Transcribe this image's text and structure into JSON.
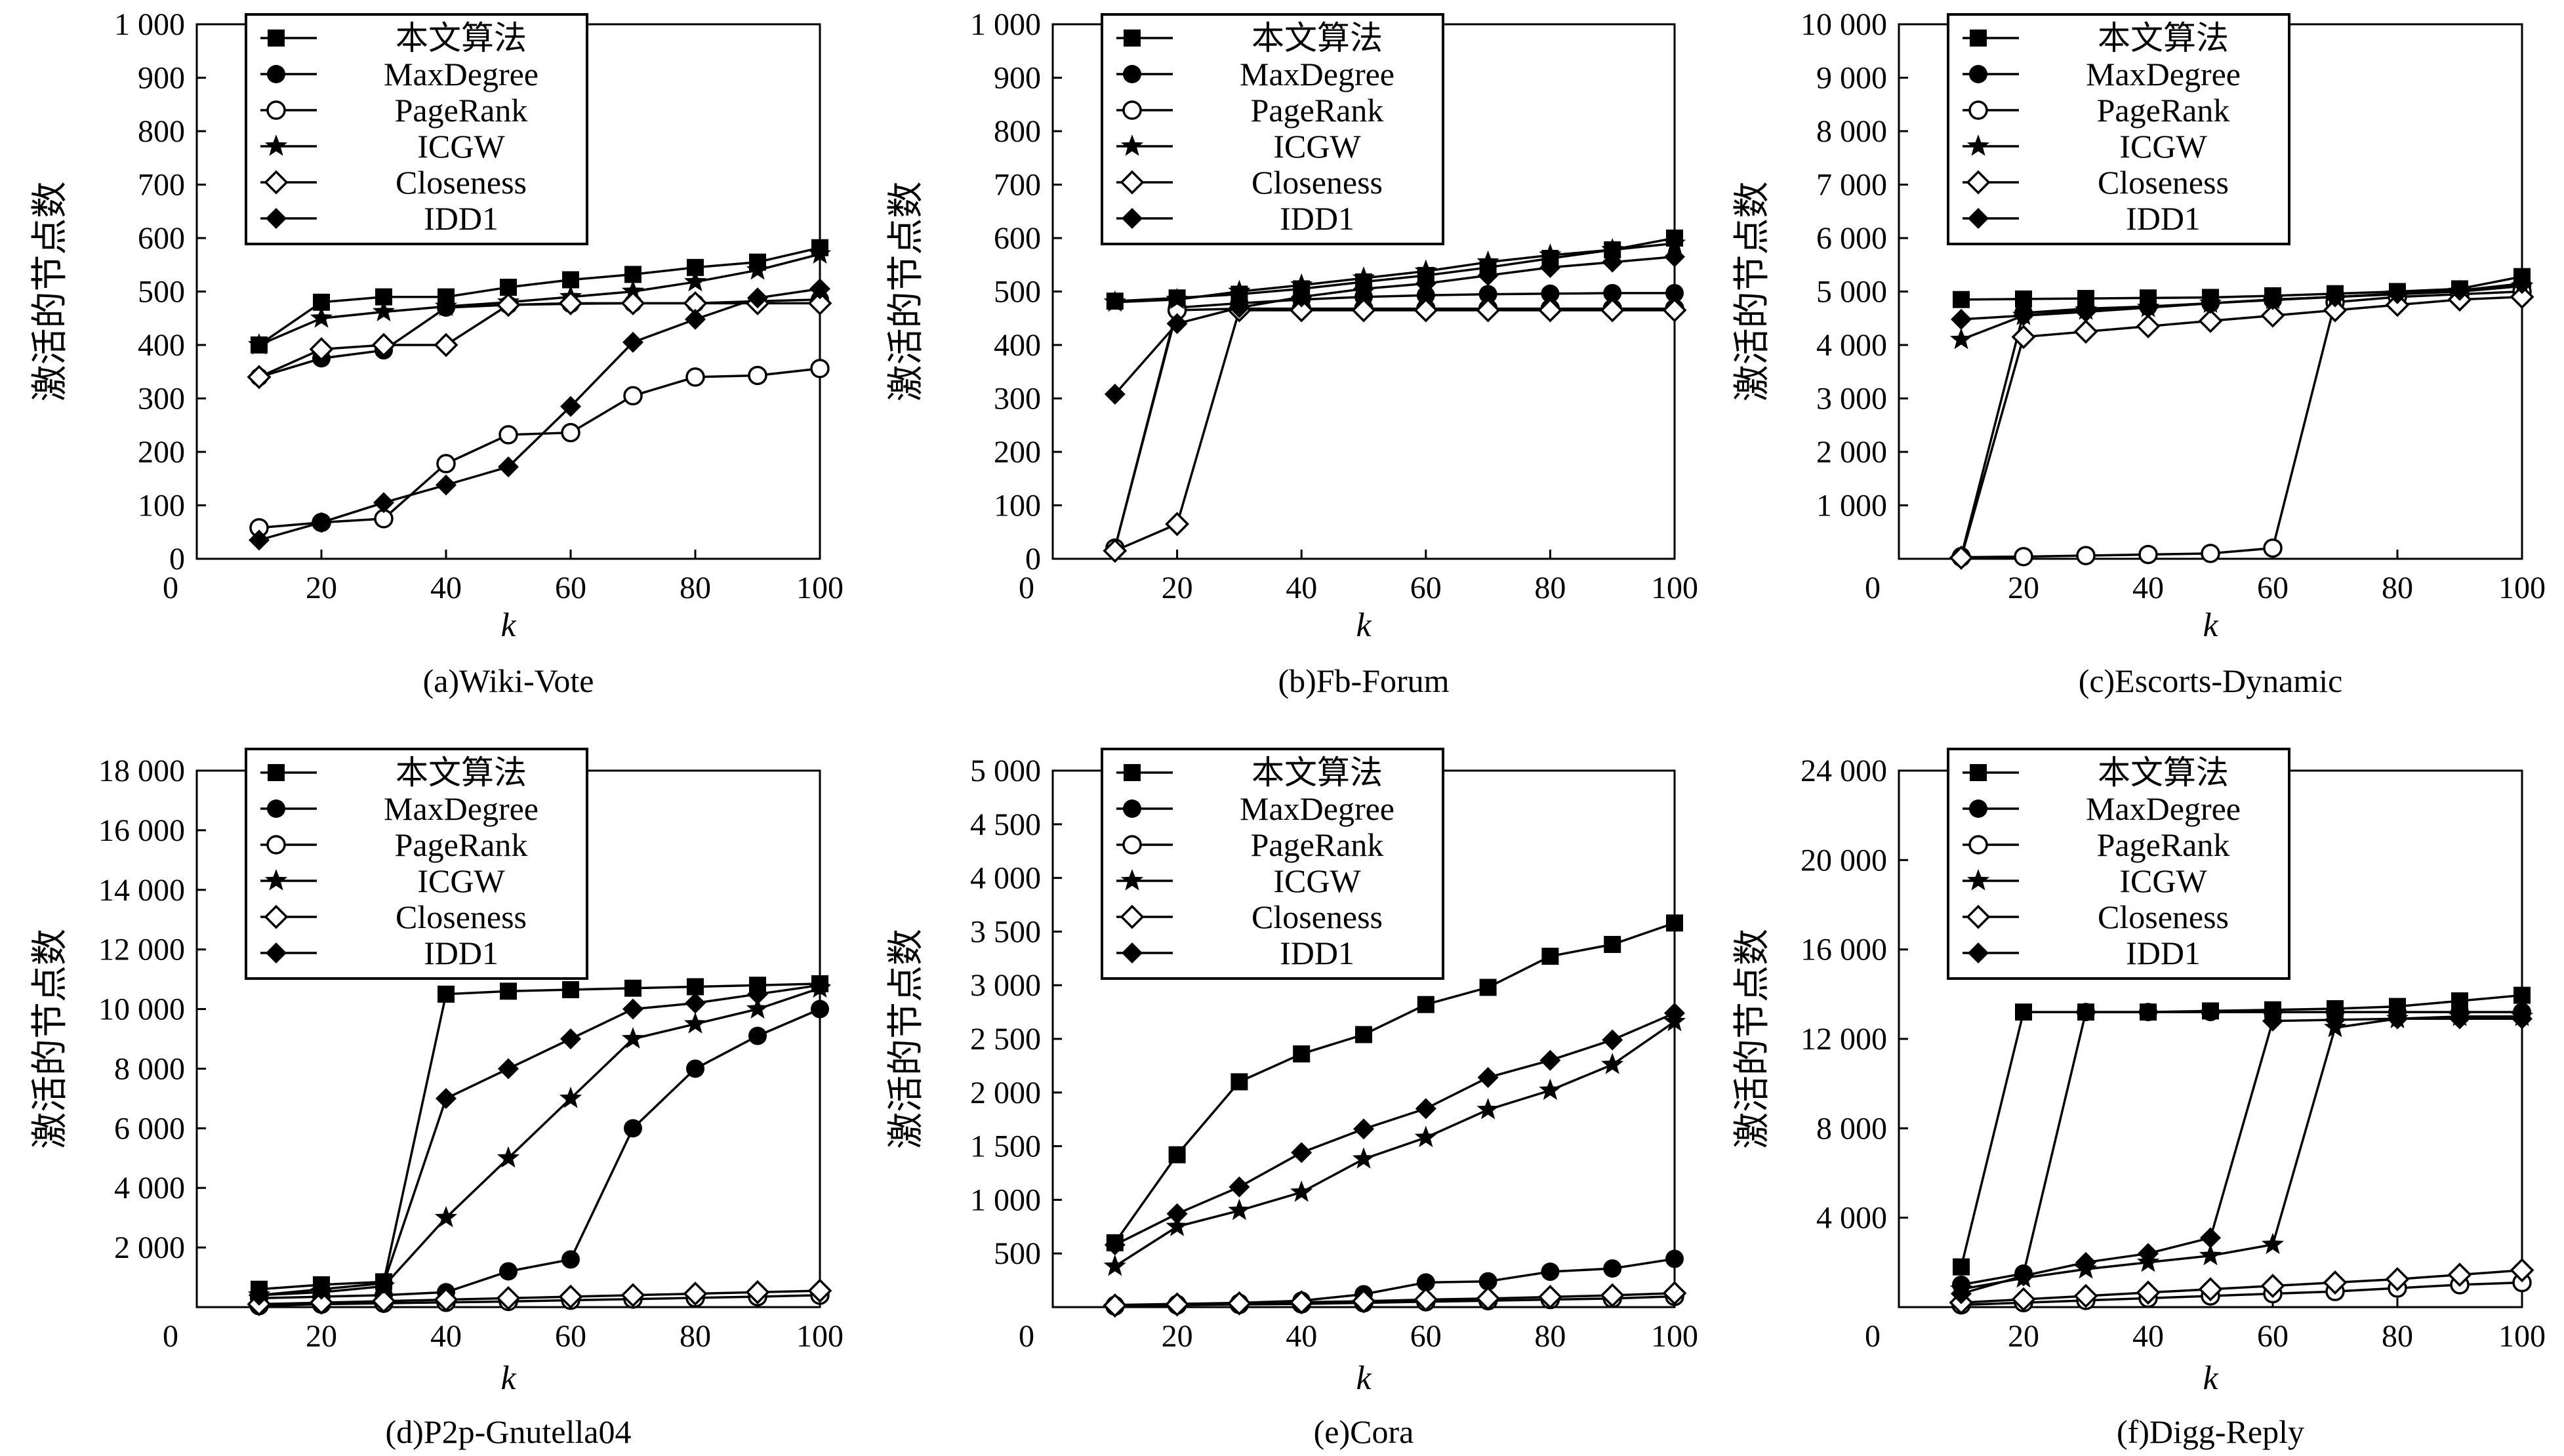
{
  "legend": [
    "本文算法",
    "MaxDegree",
    "PageRank",
    "ICGW",
    "Closeness",
    "IDD1"
  ],
  "series_markers": {
    "本文算法": "filled-square",
    "MaxDegree": "filled-circle",
    "PageRank": "open-circle",
    "ICGW": "filled-star",
    "Closeness": "open-diamond",
    "IDD1": "filled-diamond"
  },
  "chart_data": [
    {
      "type": "line",
      "caption": "(a)Wiki-Vote",
      "xlabel": "k",
      "ylabel": "激活的节点数",
      "xlim": [
        0,
        100
      ],
      "ylim": [
        0,
        1000
      ],
      "xticks": [
        0,
        20,
        40,
        60,
        80,
        100
      ],
      "xtick_labels": [
        "0",
        "20",
        "40",
        "60",
        "80",
        "100"
      ],
      "yticks": [
        0,
        100,
        200,
        300,
        400,
        500,
        600,
        700,
        800,
        900,
        1000
      ],
      "ytick_labels": [
        "0",
        "100",
        "200",
        "300",
        "400",
        "500",
        "600",
        "700",
        "800",
        "900",
        "1 000"
      ],
      "x": [
        10,
        20,
        30,
        40,
        50,
        60,
        70,
        80,
        90,
        100
      ],
      "series": [
        {
          "name": "本文算法",
          "values": [
            400,
            480,
            490,
            490,
            508,
            522,
            532,
            545,
            555,
            582
          ]
        },
        {
          "name": "MaxDegree",
          "values": [
            340,
            375,
            390,
            470,
            475,
            477,
            478,
            478,
            482,
            485
          ]
        },
        {
          "name": "PageRank",
          "values": [
            58,
            68,
            75,
            178,
            232,
            236,
            305,
            340,
            343,
            356
          ]
        },
        {
          "name": "ICGW",
          "values": [
            400,
            450,
            462,
            472,
            480,
            490,
            500,
            518,
            540,
            570
          ]
        },
        {
          "name": "Closeness",
          "values": [
            340,
            392,
            400,
            400,
            475,
            478,
            478,
            478,
            478,
            478
          ]
        },
        {
          "name": "IDD1",
          "values": [
            35,
            68,
            105,
            138,
            172,
            285,
            405,
            448,
            488,
            505
          ]
        }
      ]
    },
    {
      "type": "line",
      "caption": "(b)Fb-Forum",
      "xlabel": "k",
      "ylabel": "激活的节点数",
      "xlim": [
        0,
        100
      ],
      "ylim": [
        0,
        1000
      ],
      "xticks": [
        0,
        20,
        40,
        60,
        80,
        100
      ],
      "xtick_labels": [
        "0",
        "20",
        "40",
        "60",
        "80",
        "100"
      ],
      "yticks": [
        0,
        100,
        200,
        300,
        400,
        500,
        600,
        700,
        800,
        900,
        1000
      ],
      "ytick_labels": [
        "0",
        "100",
        "200",
        "300",
        "400",
        "500",
        "600",
        "700",
        "800",
        "900",
        "1 000"
      ],
      "x": [
        10,
        20,
        30,
        40,
        50,
        60,
        70,
        80,
        90,
        100
      ],
      "series": [
        {
          "name": "本文算法",
          "values": [
            482,
            488,
            495,
            505,
            518,
            530,
            545,
            562,
            578,
            600
          ]
        },
        {
          "name": "MaxDegree",
          "values": [
            20,
            470,
            478,
            485,
            490,
            493,
            495,
            496,
            497,
            497
          ]
        },
        {
          "name": "PageRank",
          "values": [
            20,
            465,
            468,
            468,
            468,
            468,
            468,
            468,
            468,
            468
          ]
        },
        {
          "name": "ICGW",
          "values": [
            480,
            485,
            500,
            512,
            525,
            538,
            555,
            568,
            578,
            590
          ]
        },
        {
          "name": "Closeness",
          "values": [
            15,
            65,
            465,
            465,
            465,
            465,
            465,
            465,
            465,
            465
          ]
        },
        {
          "name": "IDD1",
          "values": [
            308,
            440,
            470,
            490,
            505,
            515,
            530,
            545,
            555,
            565
          ]
        }
      ]
    },
    {
      "type": "line",
      "caption": "(c)Escorts-Dynamic",
      "xlabel": "k",
      "ylabel": "激活的节点数",
      "xlim": [
        0,
        100
      ],
      "ylim": [
        0,
        10000
      ],
      "xticks": [
        0,
        20,
        40,
        60,
        80,
        100
      ],
      "xtick_labels": [
        "0",
        "20",
        "40",
        "60",
        "80",
        "100"
      ],
      "yticks": [
        1000,
        2000,
        3000,
        4000,
        5000,
        6000,
        7000,
        8000,
        9000,
        10000
      ],
      "ytick_labels": [
        "1 000",
        "2 000",
        "3 000",
        "4 000",
        "5 000",
        "6 000",
        "7 000",
        "8 000",
        "9 000",
        "10 000"
      ],
      "x": [
        10,
        20,
        30,
        40,
        50,
        60,
        70,
        80,
        90,
        100
      ],
      "series": [
        {
          "name": "本文算法",
          "values": [
            4850,
            4860,
            4870,
            4880,
            4890,
            4920,
            4960,
            5000,
            5050,
            5280
          ]
        },
        {
          "name": "MaxDegree",
          "values": [
            50,
            4600,
            4680,
            4720,
            4780,
            4840,
            4900,
            4960,
            5020,
            5100
          ]
        },
        {
          "name": "PageRank",
          "values": [
            30,
            40,
            60,
            80,
            100,
            200,
            4800,
            4900,
            4950,
            5000
          ]
        },
        {
          "name": "ICGW",
          "values": [
            4100,
            4550,
            4650,
            4700,
            4780,
            4850,
            4900,
            4950,
            5000,
            5100
          ]
        },
        {
          "name": "Closeness",
          "values": [
            20,
            4150,
            4250,
            4350,
            4450,
            4550,
            4650,
            4750,
            4850,
            4900
          ]
        },
        {
          "name": "IDD1",
          "values": [
            4480,
            4550,
            4620,
            4700,
            4780,
            4850,
            4900,
            4960,
            5020,
            5150
          ]
        }
      ]
    },
    {
      "type": "line",
      "caption": "(d)P2p-Gnutella04",
      "xlabel": "k",
      "ylabel": "激活的节点数",
      "xlim": [
        0,
        100
      ],
      "ylim": [
        0,
        18000
      ],
      "xticks": [
        0,
        20,
        40,
        60,
        80,
        100
      ],
      "xtick_labels": [
        "0",
        "20",
        "40",
        "60",
        "80",
        "100"
      ],
      "yticks": [
        2000,
        4000,
        6000,
        8000,
        10000,
        12000,
        14000,
        16000,
        18000
      ],
      "ytick_labels": [
        "2 000",
        "4 000",
        "6 000",
        "8 000",
        "10 000",
        "12 000",
        "14 000",
        "16 000",
        "18 000"
      ],
      "x": [
        10,
        20,
        30,
        40,
        50,
        60,
        70,
        80,
        90,
        100
      ],
      "series": [
        {
          "name": "本文算法",
          "values": [
            600,
            750,
            850,
            10500,
            10600,
            10650,
            10700,
            10750,
            10800,
            10850
          ]
        },
        {
          "name": "MaxDegree",
          "values": [
            300,
            350,
            400,
            500,
            1200,
            1600,
            6000,
            8000,
            9100,
            10000
          ]
        },
        {
          "name": "PageRank",
          "values": [
            50,
            100,
            130,
            160,
            190,
            230,
            270,
            310,
            350,
            400
          ]
        },
        {
          "name": "ICGW",
          "values": [
            400,
            500,
            700,
            3000,
            5000,
            7000,
            9000,
            9500,
            10000,
            10700
          ]
        },
        {
          "name": "Closeness",
          "values": [
            100,
            150,
            200,
            250,
            300,
            350,
            400,
            450,
            500,
            550
          ]
        },
        {
          "name": "IDD1",
          "values": [
            400,
            600,
            800,
            7000,
            8000,
            9000,
            10000,
            10200,
            10500,
            10800
          ]
        }
      ]
    },
    {
      "type": "line",
      "caption": "(e)Cora",
      "xlabel": "k",
      "ylabel": "激活的节点数",
      "xlim": [
        0,
        100
      ],
      "ylim": [
        0,
        5000
      ],
      "xticks": [
        0,
        20,
        40,
        60,
        80,
        100
      ],
      "xtick_labels": [
        "0",
        "20",
        "40",
        "60",
        "80",
        "100"
      ],
      "yticks": [
        500,
        1000,
        1500,
        2000,
        2500,
        3000,
        3500,
        4000,
        4500,
        5000
      ],
      "ytick_labels": [
        "500",
        "1 000",
        "1 500",
        "2 000",
        "2 500",
        "3 000",
        "3 500",
        "4 000",
        "4 500",
        "5 000"
      ],
      "x": [
        10,
        20,
        30,
        40,
        50,
        60,
        70,
        80,
        90,
        100
      ],
      "series": [
        {
          "name": "本文算法",
          "values": [
            600,
            1420,
            2100,
            2360,
            2540,
            2820,
            2980,
            3270,
            3380,
            3580
          ]
        },
        {
          "name": "MaxDegree",
          "values": [
            20,
            30,
            40,
            60,
            120,
            230,
            240,
            330,
            360,
            450
          ]
        },
        {
          "name": "PageRank",
          "values": [
            10,
            20,
            25,
            30,
            40,
            50,
            60,
            70,
            80,
            100
          ]
        },
        {
          "name": "ICGW",
          "values": [
            380,
            750,
            900,
            1070,
            1380,
            1580,
            1840,
            2020,
            2260,
            2660
          ]
        },
        {
          "name": "Closeness",
          "values": [
            15,
            25,
            35,
            45,
            55,
            70,
            80,
            95,
            110,
            130
          ]
        },
        {
          "name": "IDD1",
          "values": [
            580,
            870,
            1120,
            1440,
            1660,
            1850,
            2140,
            2300,
            2490,
            2740
          ]
        }
      ]
    },
    {
      "type": "line",
      "caption": "(f)Digg-Reply",
      "xlabel": "k",
      "ylabel": "激活的节点数",
      "xlim": [
        0,
        100
      ],
      "ylim": [
        0,
        24000
      ],
      "xticks": [
        0,
        20,
        40,
        60,
        80,
        100
      ],
      "xtick_labels": [
        "0",
        "20",
        "40",
        "60",
        "80",
        "100"
      ],
      "yticks": [
        4000,
        8000,
        12000,
        16000,
        20000,
        24000
      ],
      "ytick_labels": [
        "4 000",
        "8 000",
        "12 000",
        "16 000",
        "20 000",
        "24 000"
      ],
      "x": [
        10,
        20,
        30,
        40,
        50,
        60,
        70,
        80,
        90,
        100
      ],
      "series": [
        {
          "name": "本文算法",
          "values": [
            1800,
            13200,
            13200,
            13200,
            13250,
            13300,
            13350,
            13450,
            13700,
            13950
          ]
        },
        {
          "name": "MaxDegree",
          "values": [
            1000,
            1500,
            13200,
            13200,
            13200,
            13200,
            13200,
            13200,
            13200,
            13200
          ]
        },
        {
          "name": "PageRank",
          "values": [
            100,
            200,
            300,
            400,
            500,
            600,
            700,
            850,
            1000,
            1100
          ]
        },
        {
          "name": "ICGW",
          "values": [
            800,
            1300,
            1700,
            2000,
            2300,
            2800,
            12500,
            12900,
            13000,
            13000
          ]
        },
        {
          "name": "Closeness",
          "values": [
            200,
            350,
            500,
            650,
            800,
            950,
            1100,
            1250,
            1450,
            1650
          ]
        },
        {
          "name": "IDD1",
          "values": [
            600,
            1400,
            2000,
            2400,
            3100,
            12800,
            12850,
            12900,
            12900,
            12900
          ]
        }
      ]
    }
  ]
}
